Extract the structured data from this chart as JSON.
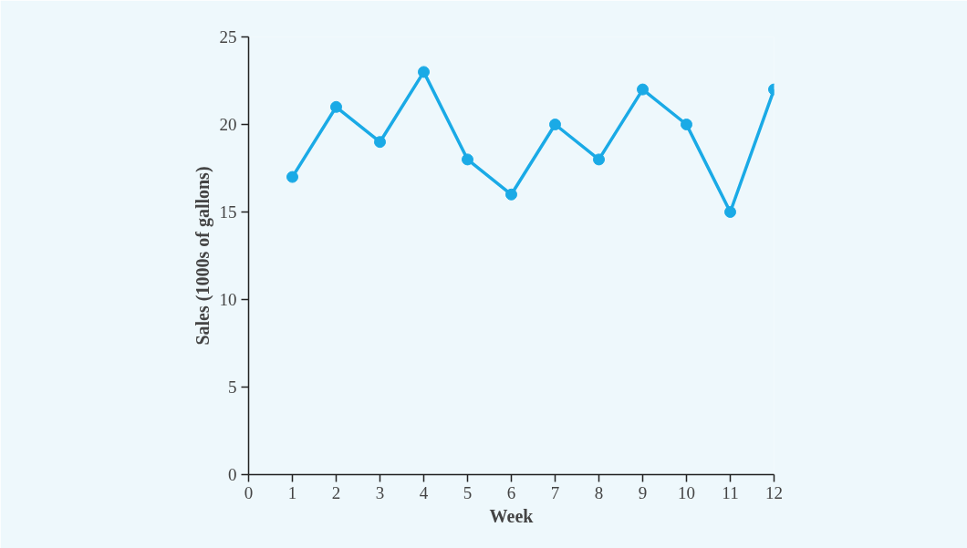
{
  "chart_data": {
    "type": "line",
    "xlabel": "Week",
    "ylabel": "Sales (1000s of gallons)",
    "x": [
      1,
      2,
      3,
      4,
      5,
      6,
      7,
      8,
      9,
      10,
      11,
      12
    ],
    "series": [
      {
        "color": "#1aaae6",
        "values": [
          17,
          21,
          19,
          23,
          18,
          16,
          20,
          18,
          22,
          20,
          15,
          22
        ]
      }
    ],
    "xlim": [
      0,
      12
    ],
    "xticks": [
      0,
      1,
      2,
      3,
      4,
      5,
      6,
      7,
      8,
      9,
      10,
      11,
      12
    ],
    "ylim": [
      0,
      25
    ],
    "yticks": [
      0,
      5,
      10,
      15,
      20,
      25
    ],
    "grid": false,
    "marker": "circle",
    "line_style": "solid"
  }
}
